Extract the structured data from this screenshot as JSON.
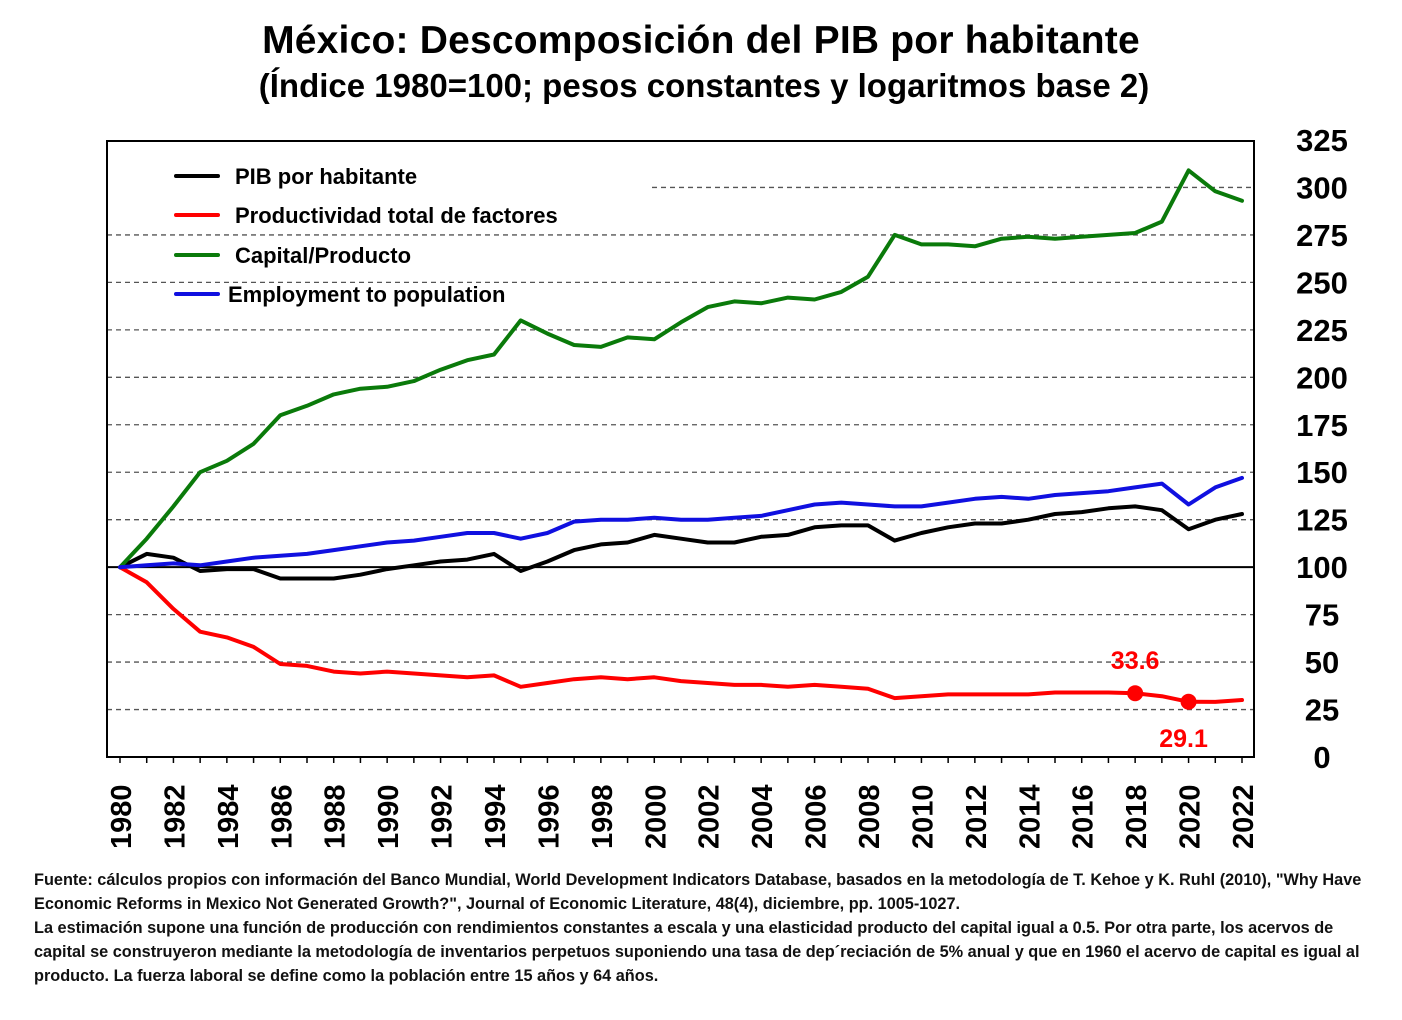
{
  "title": "México: Descomposición del PIB por habitante",
  "subtitle": "(Índice 1980=100; pesos constantes y logaritmos base 2)",
  "chart_data": {
    "type": "line",
    "x": [
      1980,
      1981,
      1982,
      1983,
      1984,
      1985,
      1986,
      1987,
      1988,
      1989,
      1990,
      1991,
      1992,
      1993,
      1994,
      1995,
      1996,
      1997,
      1998,
      1999,
      2000,
      2001,
      2002,
      2003,
      2004,
      2005,
      2006,
      2007,
      2008,
      2009,
      2010,
      2011,
      2012,
      2013,
      2014,
      2015,
      2016,
      2017,
      2018,
      2019,
      2020,
      2021,
      2022
    ],
    "x_tick_labels": [
      "1980",
      "1982",
      "1984",
      "1986",
      "1988",
      "1990",
      "1992",
      "1994",
      "1996",
      "1998",
      "2000",
      "2002",
      "2004",
      "2006",
      "2008",
      "2010",
      "2012",
      "2014",
      "2016",
      "2018",
      "2020",
      "2022"
    ],
    "y_ticks": [
      0,
      25,
      50,
      75,
      100,
      125,
      150,
      175,
      200,
      225,
      250,
      275,
      300,
      325
    ],
    "ylim": [
      0,
      325
    ],
    "xlim": [
      1980,
      2022
    ],
    "grid": "horizontal dashed",
    "legend_position": "top-left",
    "series": [
      {
        "name": "PIB por habitante",
        "color": "#000000",
        "values": [
          100,
          107,
          105,
          98,
          99,
          99,
          94,
          94,
          94,
          96,
          99,
          101,
          103,
          104,
          107,
          98,
          103,
          109,
          112,
          113,
          117,
          115,
          113,
          113,
          116,
          117,
          121,
          122,
          122,
          114,
          118,
          121,
          123,
          123,
          125,
          128,
          129,
          131,
          132,
          130,
          120,
          125,
          128
        ]
      },
      {
        "name": "Productividad total de factores",
        "color": "#ff0000",
        "values": [
          100,
          92,
          78,
          66,
          63,
          58,
          49,
          48,
          45,
          44,
          45,
          44,
          43,
          42,
          43,
          37,
          39,
          41,
          42,
          41,
          42,
          40,
          39,
          38,
          38,
          37,
          38,
          37,
          36,
          31,
          32,
          33,
          33,
          33,
          33,
          34,
          34,
          34,
          33.6,
          32,
          29.1,
          29,
          30
        ]
      },
      {
        "name": "Capital/Producto",
        "color": "#0a7a0a",
        "values": [
          100,
          115,
          132,
          150,
          156,
          165,
          180,
          185,
          191,
          194,
          195,
          198,
          204,
          209,
          212,
          230,
          223,
          217,
          216,
          221,
          220,
          229,
          237,
          240,
          239,
          242,
          241,
          245,
          253,
          275,
          270,
          270,
          269,
          273,
          274,
          273,
          274,
          275,
          276,
          282,
          309,
          298,
          293
        ]
      },
      {
        "name": "Employment to population",
        "color": "#1010e0",
        "values": [
          100,
          101,
          102,
          101,
          103,
          105,
          106,
          107,
          109,
          111,
          113,
          114,
          116,
          118,
          118,
          115,
          118,
          124,
          125,
          125,
          126,
          125,
          125,
          126,
          127,
          130,
          133,
          134,
          133,
          132,
          132,
          134,
          136,
          137,
          136,
          138,
          139,
          140,
          142,
          144,
          133,
          142,
          147
        ]
      }
    ],
    "annotations": [
      {
        "series": "Productividad total de factores",
        "x": 2018,
        "value": "33.6"
      },
      {
        "series": "Productividad total de factores",
        "x": 2020,
        "value": "29.1"
      }
    ]
  },
  "source_note": [
    "Fuente: cálculos propios con información del Banco Mundial, World Development Indicators Database, basados en la metodología de T. Kehoe y K. Ruhl (2010), \"Why Have Economic Reforms in Mexico Not Generated Growth?\", Journal of Economic Literature, 48(4), diciembre, pp. 1005-1027.",
    "La estimación supone una función de producción con rendimientos constantes a escala y una elasticidad producto del capital igual  a 0.5. Por otra parte, los acervos de capital se construyeron mediante la metodología de inventarios perpetuos suponiendo  una tasa de dep´reciación de 5% anual y que en 1960 el acervo de capital es igual al producto. La fuerza laboral se define como la población entre 15 años y 64 años."
  ]
}
